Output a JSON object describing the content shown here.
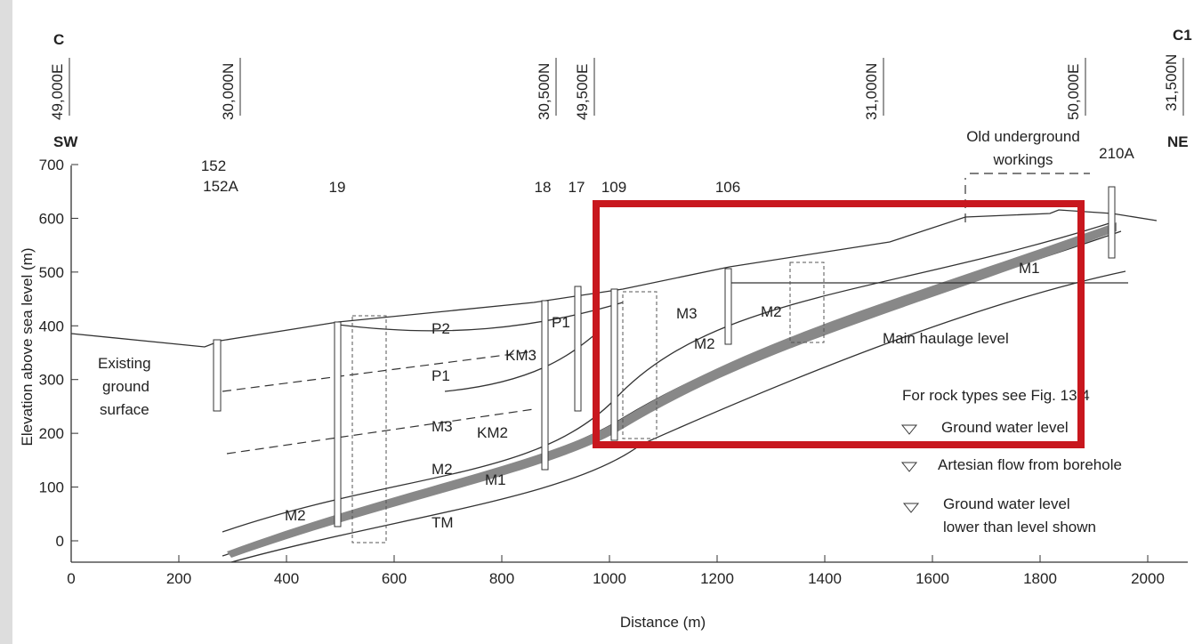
{
  "header": {
    "section_start": "C",
    "section_end": "C1",
    "dir_left": "SW",
    "dir_right": "NE"
  },
  "grid_refs": [
    "49,000E",
    "30,000N",
    "30,500N",
    "49,500E",
    "31,000N",
    "50,000E",
    "31,500N"
  ],
  "boreholes": [
    "152",
    "152A",
    "19",
    "18",
    "17",
    "109",
    "106",
    "210A"
  ],
  "axes": {
    "y_label": "Elevation above sea level (m)",
    "x_label": "Distance (m)",
    "yticks": [
      0,
      100,
      200,
      300,
      400,
      500,
      600,
      700
    ],
    "xticks": [
      0,
      200,
      400,
      600,
      800,
      1000,
      1200,
      1400,
      1600,
      1800,
      2000
    ]
  },
  "annotations": {
    "ground": [
      "Existing",
      "ground",
      "surface"
    ],
    "workings": [
      "Old underground",
      "workings"
    ],
    "haulage": "Main haulage level"
  },
  "layers": [
    "P2",
    "P1",
    "M3",
    "M2",
    "M1",
    "TM",
    "KM3",
    "KM2",
    "P1",
    "M3",
    "M2",
    "M2",
    "M1",
    "M2"
  ],
  "legend": {
    "title": "For rock types see Fig. 13.4",
    "items": [
      "Ground water level",
      "Artesian flow from borehole",
      "Ground water level",
      "lower than level shown"
    ]
  }
}
